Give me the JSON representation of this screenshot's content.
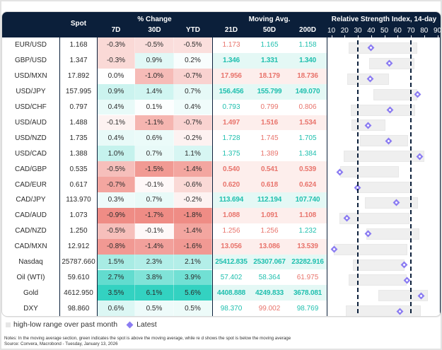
{
  "chart_data": {
    "type": "table",
    "columns": {
      "spot": "Spot",
      "pct_change_group": "% Change",
      "pct_change": [
        "7D",
        "30D",
        "YTD"
      ],
      "moving_avg_group": "Moving Avg.",
      "moving_avg": [
        "21D",
        "50D",
        "200D"
      ],
      "rsi_group": "Relative Strength Index, 14-day"
    },
    "rsi_axis": {
      "range": [
        10,
        90
      ],
      "ticks": [
        "10",
        "20",
        "30",
        "40",
        "50",
        "60",
        "70",
        "80",
        "90"
      ],
      "reference_lines": [
        30,
        70
      ]
    },
    "rows": [
      {
        "pair": "EUR/USD",
        "spot": "1.168",
        "pct": [
          "-0.3%",
          "-0.5%",
          "-0.5%"
        ],
        "ma": [
          "1.173",
          "1.165",
          "1.158"
        ],
        "rsi": {
          "low": 23,
          "high": 75,
          "latest": 40
        }
      },
      {
        "pair": "GBP/USD",
        "spot": "1.347",
        "pct": [
          "-0.3%",
          "0.9%",
          "0.2%"
        ],
        "ma": [
          "1.346",
          "1.331",
          "1.340"
        ],
        "rsi": {
          "low": 38.5,
          "high": 72.5,
          "latest": 53.5
        }
      },
      {
        "pair": "USD/MXN",
        "spot": "17.892",
        "pct": [
          "0.0%",
          "-1.0%",
          "-0.7%"
        ],
        "ma": [
          "17.956",
          "18.179",
          "18.736"
        ],
        "rsi": {
          "low": 22,
          "high": 53.5,
          "latest": 39.5
        }
      },
      {
        "pair": "USD/JPY",
        "spot": "157.995",
        "pct": [
          "0.9%",
          "1.4%",
          "0.7%"
        ],
        "ma": [
          "156.456",
          "155.799",
          "149.070"
        ],
        "rsi": {
          "low": 41.5,
          "high": 75,
          "latest": 75
        }
      },
      {
        "pair": "USD/CHF",
        "spot": "0.797",
        "pct": [
          "0.4%",
          "0.1%",
          "0.4%"
        ],
        "ma": [
          "0.793",
          "0.799",
          "0.806"
        ],
        "rsi": {
          "low": 24.5,
          "high": 73,
          "latest": 54
        }
      },
      {
        "pair": "USD/AUD",
        "spot": "1.488",
        "pct": [
          "-0.1%",
          "-1.1%",
          "-0.7%"
        ],
        "ma": [
          "1.497",
          "1.516",
          "1.534"
        ],
        "rsi": {
          "low": 25,
          "high": 51,
          "latest": 37.5
        }
      },
      {
        "pair": "USD/NZD",
        "spot": "1.735",
        "pct": [
          "0.4%",
          "0.6%",
          "-0.2%"
        ],
        "ma": [
          "1.728",
          "1.745",
          "1.705"
        ],
        "rsi": {
          "low": 31.5,
          "high": 68,
          "latest": 53
        }
      },
      {
        "pair": "USD/CAD",
        "spot": "1.388",
        "pct": [
          "1.0%",
          "0.7%",
          "1.1%"
        ],
        "ma": [
          "1.375",
          "1.389",
          "1.384"
        ],
        "rsi": {
          "low": 19.5,
          "high": 80,
          "latest": 76.5
        }
      },
      {
        "pair": "CAD/GBP",
        "spot": "0.535",
        "pct": [
          "-0.5%",
          "-1.5%",
          "-1.4%"
        ],
        "ma": [
          "0.540",
          "0.541",
          "0.539"
        ],
        "rsi": {
          "low": 16.5,
          "high": 61,
          "latest": 16.5
        }
      },
      {
        "pair": "CAD/EUR",
        "spot": "0.617",
        "pct": [
          "-0.7%",
          "-0.1%",
          "-0.6%"
        ],
        "ma": [
          "0.620",
          "0.618",
          "0.624"
        ],
        "rsi": {
          "low": 29.5,
          "high": 71,
          "latest": 29.5
        }
      },
      {
        "pair": "CAD/JPY",
        "spot": "113.970",
        "pct": [
          "0.3%",
          "0.7%",
          "-0.2%"
        ],
        "ma": [
          "113.694",
          "112.194",
          "107.740"
        ],
        "rsi": {
          "low": 35.5,
          "high": 75.5,
          "latest": 59
        }
      },
      {
        "pair": "CAD/AUD",
        "spot": "1.073",
        "pct": [
          "-0.9%",
          "-1.7%",
          "-1.8%"
        ],
        "ma": [
          "1.088",
          "1.091",
          "1.108"
        ],
        "rsi": {
          "low": 16,
          "high": 69,
          "latest": 21.5
        }
      },
      {
        "pair": "CAD/NZD",
        "spot": "1.250",
        "pct": [
          "-0.5%",
          "-0.1%",
          "-1.4%"
        ],
        "ma": [
          "1.256",
          "1.256",
          "1.232"
        ],
        "rsi": {
          "low": 36.5,
          "high": 76.5,
          "latest": 37.5
        }
      },
      {
        "pair": "CAD/MXN",
        "spot": "12.912",
        "pct": [
          "-0.8%",
          "-1.4%",
          "-1.6%"
        ],
        "ma": [
          "13.056",
          "13.086",
          "13.539"
        ],
        "rsi": {
          "low": 12,
          "high": 67.5,
          "latest": 12
        }
      },
      {
        "pair": "Nasdaq",
        "spot": "25787.660",
        "pct": [
          "1.5%",
          "2.3%",
          "2.1%"
        ],
        "ma": [
          "25412.835",
          "25307.067",
          "23282.916"
        ],
        "rsi": {
          "low": 26.5,
          "high": 65,
          "latest": 65
        }
      },
      {
        "pair": "Oil (WTI)",
        "spot": "59.610",
        "pct": [
          "2.7%",
          "3.8%",
          "3.9%"
        ],
        "ma": [
          "57.402",
          "58.364",
          "61.975"
        ],
        "rsi": {
          "low": 23,
          "high": 67,
          "latest": 67
        }
      },
      {
        "pair": "Gold",
        "spot": "4612.950",
        "pct": [
          "3.5%",
          "6.1%",
          "5.6%"
        ],
        "ma": [
          "4408.888",
          "4249.833",
          "3678.081"
        ],
        "rsi": {
          "low": 45.5,
          "high": 83,
          "latest": 77.5
        }
      },
      {
        "pair": "DXY",
        "spot": "98.860",
        "pct": [
          "0.6%",
          "0.5%",
          "0.5%"
        ],
        "ma": [
          "98.370",
          "99.002",
          "98.769"
        ],
        "rsi": {
          "low": 21,
          "high": 77.5,
          "latest": 61.5
        }
      }
    ],
    "legend": {
      "range_label": "high-low range over past month",
      "latest_label": "Latest",
      "placement": "bottom-left"
    },
    "notes": "Notes: In the moving average section, green indicates the spot is above the moving average, while re  d shows the spot is below  the moving average",
    "source": "Source: Convera, Macrobond - Tuesday, January 13, 2026"
  },
  "colors": {
    "header_bg": "#0b1f3a",
    "positive": "#33d2c1",
    "negative": "#ef8c85",
    "ma_above_text": "#1fbfae",
    "ma_below_text": "#e8746c",
    "ma_above_bg": "#e4f8f5",
    "ma_below_bg": "#fdeeec",
    "rsi_latest": "#8b7cf2",
    "rsi_range": "#efefef"
  }
}
